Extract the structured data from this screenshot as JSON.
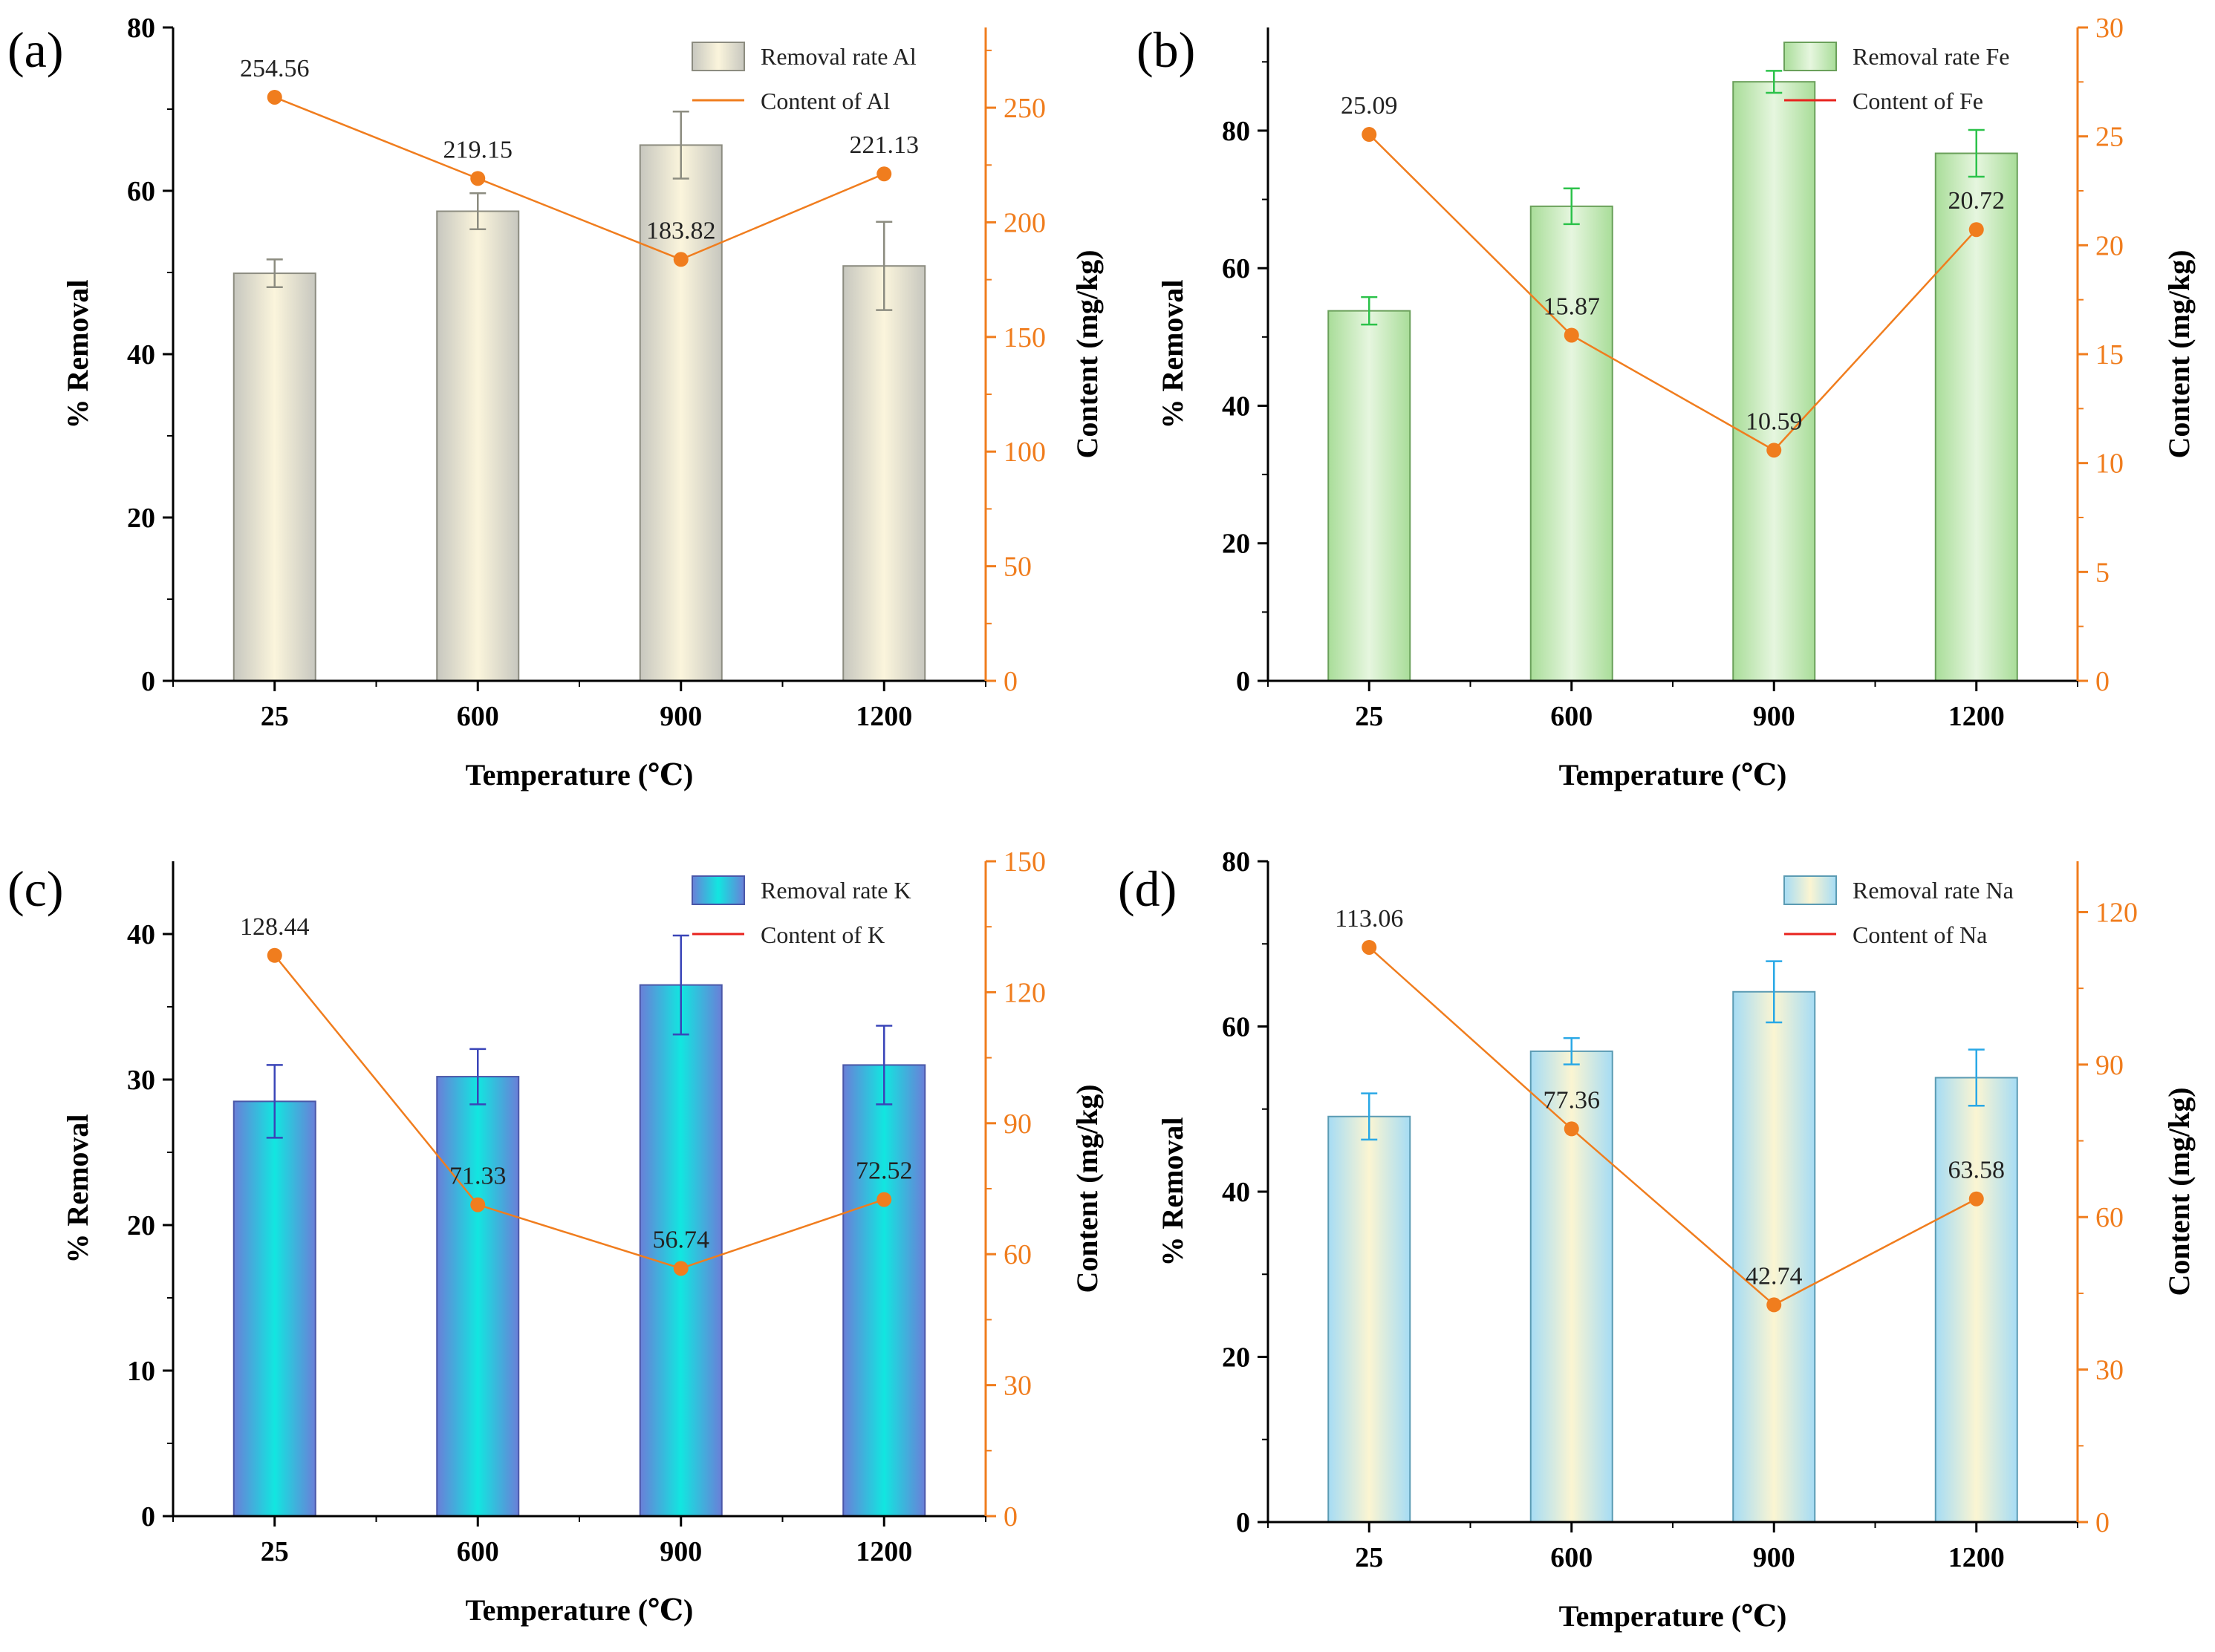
{
  "chart_data": [
    {
      "type": "bar",
      "panel_label": "(a)",
      "categories": [
        "25",
        "600",
        "900",
        "1200"
      ],
      "xlabel": "Temperature (℃)",
      "ylabel": "% Removal",
      "y2label": "Content (mg/kg)",
      "ylim": [
        0,
        80
      ],
      "yticks": [
        "0",
        "20",
        "40",
        "60",
        "80"
      ],
      "y2lim": [
        0,
        285
      ],
      "y2ticks": [
        "0",
        "50",
        "100",
        "150",
        "200",
        "250"
      ],
      "series": [
        {
          "name": "Removal rate Al",
          "kind": "bar",
          "values": [
            49.9,
            57.5,
            65.6,
            50.8
          ],
          "errors": [
            1.7,
            2.2,
            4.1,
            5.4
          ]
        },
        {
          "name": "Content of Al",
          "kind": "line",
          "values": [
            254.56,
            219.15,
            183.82,
            221.13
          ],
          "labels": [
            "254.56",
            "219.15",
            "183.82",
            "221.13"
          ]
        }
      ],
      "colors": {
        "bar_edge": "#8c8c80",
        "bar_center": "#fbf5dc",
        "bar_side": "#c7c7bf",
        "error": "#8c8c80",
        "line": "#f07d1e",
        "marker": "#f07d1e",
        "legend_line": "#f07d1e",
        "right_axis": "#f07d1e"
      },
      "legend_position": "top-right"
    },
    {
      "type": "bar",
      "panel_label": "(b)",
      "categories": [
        "25",
        "600",
        "900",
        "1200"
      ],
      "xlabel": "Temperature (℃)",
      "ylabel": "% Removal",
      "y2label": "Content (mg/kg)",
      "ylim": [
        0,
        95
      ],
      "yticks": [
        "0",
        "20",
        "40",
        "60",
        "80"
      ],
      "y2lim": [
        0,
        30
      ],
      "y2ticks": [
        "0",
        "5",
        "10",
        "15",
        "20",
        "25",
        "30"
      ],
      "series": [
        {
          "name": "Removal rate Fe",
          "kind": "bar",
          "values": [
            53.8,
            69.0,
            87.1,
            76.7
          ],
          "errors": [
            2.0,
            2.6,
            1.6,
            3.4
          ]
        },
        {
          "name": "Content of Fe",
          "kind": "line",
          "values": [
            25.09,
            15.87,
            10.59,
            20.72
          ],
          "labels": [
            "25.09",
            "15.87",
            "10.59",
            "20.72"
          ]
        }
      ],
      "colors": {
        "bar_edge": "#6aa05a",
        "bar_center": "#e6f6df",
        "bar_side": "#a9dd99",
        "error": "#2cc24a",
        "line": "#f07d1e",
        "marker": "#f07d1e",
        "legend_line": "#e8231e",
        "right_axis": "#f07d1e"
      },
      "legend_position": "top-right"
    },
    {
      "type": "bar",
      "panel_label": "(c)",
      "categories": [
        "25",
        "600",
        "900",
        "1200"
      ],
      "xlabel": "Temperature (℃)",
      "ylabel": "% Removal",
      "y2label": "Content (mg/kg)",
      "ylim": [
        0,
        45
      ],
      "yticks": [
        "0",
        "10",
        "20",
        "30",
        "40"
      ],
      "y2lim": [
        0,
        150
      ],
      "y2ticks": [
        "0",
        "30",
        "60",
        "90",
        "120",
        "150"
      ],
      "series": [
        {
          "name": "Removal rate K",
          "kind": "bar",
          "values": [
            28.5,
            30.2,
            36.5,
            31.0
          ],
          "errors": [
            2.5,
            1.9,
            3.4,
            2.7
          ]
        },
        {
          "name": "Content of K",
          "kind": "line",
          "values": [
            128.44,
            71.33,
            56.74,
            72.52
          ],
          "labels": [
            "128.44",
            "71.33",
            "56.74",
            "72.52"
          ]
        }
      ],
      "colors": {
        "bar_edge": "#4a57a8",
        "bar_center": "#12e6e0",
        "bar_side": "#6a7fd8",
        "error": "#3a45b8",
        "line": "#f07d1e",
        "marker": "#f07d1e",
        "legend_line": "#e8231e",
        "right_axis": "#f07d1e"
      },
      "legend_position": "top-right"
    },
    {
      "type": "bar",
      "panel_label": "(d)",
      "categories": [
        "25",
        "600",
        "900",
        "1200"
      ],
      "xlabel": "Temperature (℃)",
      "ylabel": "% Removal",
      "y2label": "Content (mg/kg)",
      "ylim": [
        0,
        80
      ],
      "yticks": [
        "0",
        "20",
        "40",
        "60",
        "80"
      ],
      "y2lim": [
        0,
        130
      ],
      "y2ticks": [
        "0",
        "30",
        "60",
        "90",
        "120"
      ],
      "series": [
        {
          "name": "Removal rate Na",
          "kind": "bar",
          "values": [
            49.1,
            57.0,
            64.2,
            53.8
          ],
          "errors": [
            2.8,
            1.6,
            3.7,
            3.4
          ]
        },
        {
          "name": "Content of Na",
          "kind": "line",
          "values": [
            113.06,
            77.36,
            42.74,
            63.58
          ],
          "labels": [
            "113.06",
            "77.36",
            "42.74",
            "63.58"
          ]
        }
      ],
      "colors": {
        "bar_edge": "#5b9bb3",
        "bar_center": "#fbf5d2",
        "bar_side": "#a6dcf4",
        "error": "#2aa8e6",
        "line": "#f07d1e",
        "marker": "#f07d1e",
        "legend_line": "#e8231e",
        "right_axis": "#f07d1e"
      },
      "legend_position": "top-right"
    }
  ]
}
